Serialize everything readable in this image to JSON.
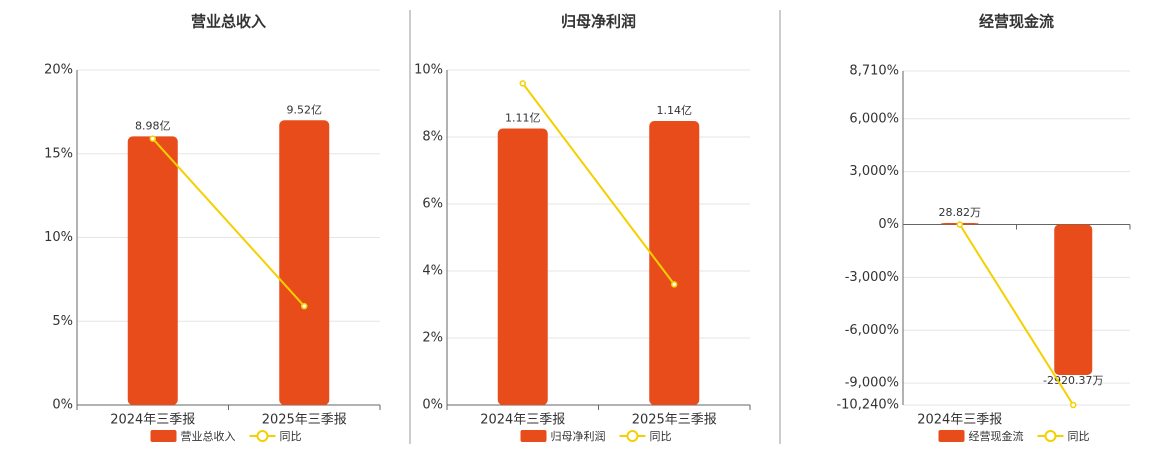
{
  "chart_data": [
    {
      "type": "combo",
      "title": "营业总收入",
      "categories": [
        "2024年三季报",
        "2025年三季报"
      ],
      "ylim": [
        0,
        20
      ],
      "yticks": [
        {
          "value": 0,
          "label": "0%"
        },
        {
          "value": 5,
          "label": "5%"
        },
        {
          "value": 10,
          "label": "10%"
        },
        {
          "value": 15,
          "label": "15%"
        },
        {
          "value": 20,
          "label": "20%"
        }
      ],
      "y2lim": [
        0,
        11.2
      ],
      "grid": true,
      "series": [
        {
          "name": "营业总收入",
          "type": "bar",
          "axis": "y2",
          "color": "#e84c1a",
          "values": [
            8.98,
            9.52
          ],
          "value_labels": [
            "8.98亿",
            "9.52亿"
          ]
        },
        {
          "name": "同比",
          "type": "line",
          "color": "#f5d000",
          "values": [
            15.9,
            5.9
          ]
        }
      ]
    },
    {
      "type": "combo",
      "title": "归母净利润",
      "categories": [
        "2024年三季报",
        "2025年三季报"
      ],
      "ylim": [
        0,
        10
      ],
      "yticks": [
        {
          "value": 0,
          "label": "0%"
        },
        {
          "value": 2,
          "label": "2%"
        },
        {
          "value": 4,
          "label": "4%"
        },
        {
          "value": 6,
          "label": "6%"
        },
        {
          "value": 8,
          "label": "8%"
        },
        {
          "value": 10,
          "label": "10%"
        }
      ],
      "y2lim": [
        0,
        1.345
      ],
      "grid": true,
      "series": [
        {
          "name": "归母净利润",
          "type": "bar",
          "axis": "y2",
          "color": "#e84c1a",
          "values": [
            1.11,
            1.14
          ],
          "value_labels": [
            "1.11亿",
            "1.14亿"
          ]
        },
        {
          "name": "同比",
          "type": "line",
          "color": "#f5d000",
          "values": [
            9.6,
            3.6
          ]
        }
      ]
    },
    {
      "type": "combo",
      "title": "经营现金流",
      "categories": [
        "2024年三季报",
        null
      ],
      "ylim": [
        -10240,
        8710
      ],
      "yticks": [
        {
          "value": -10240,
          "label": "-10,240%"
        },
        {
          "value": -9000,
          "label": "-9,000%"
        },
        {
          "value": -6000,
          "label": "-6,000%"
        },
        {
          "value": -3000,
          "label": "-3,000%"
        },
        {
          "value": 0,
          "label": "0%"
        },
        {
          "value": 3000,
          "label": "3,000%"
        },
        {
          "value": 6000,
          "label": "6,000%"
        },
        {
          "value": 8710,
          "label": "8,710%"
        }
      ],
      "y2lim": [
        -3502,
        2979
      ],
      "grid": true,
      "series": [
        {
          "name": "经营现金流",
          "type": "bar",
          "axis": "y2",
          "color": "#e84c1a",
          "values": [
            28.82,
            -2920.37
          ],
          "value_labels": [
            "28.82万",
            "-2920.37万"
          ]
        },
        {
          "name": "同比",
          "type": "line",
          "color": "#f5d000",
          "values": [
            0,
            -10240
          ]
        }
      ]
    }
  ]
}
